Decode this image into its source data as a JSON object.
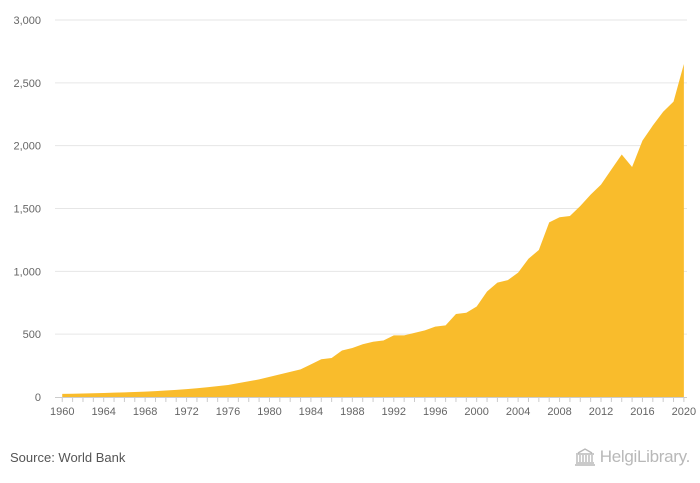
{
  "chart_data": {
    "type": "area",
    "title": "",
    "xlabel": "",
    "ylabel": "",
    "ylim": [
      0,
      3000
    ],
    "xlim": [
      1959.3,
      2020.3
    ],
    "y_ticks": [
      0,
      500,
      1000,
      1500,
      2000,
      2500,
      3000
    ],
    "y_tick_labels": [
      "0",
      "500",
      "1,000",
      "1,500",
      "2,000",
      "2,500",
      "3,000"
    ],
    "x_ticks": [
      1960,
      1964,
      1968,
      1972,
      1976,
      1980,
      1984,
      1988,
      1992,
      1996,
      2000,
      2004,
      2008,
      2012,
      2016,
      2020
    ],
    "x_tick_labels": [
      "1960",
      "1964",
      "1968",
      "1972",
      "1976",
      "1980",
      "1984",
      "1988",
      "1992",
      "1996",
      "2000",
      "2004",
      "2008",
      "2012",
      "2016",
      "2020"
    ],
    "grid": true,
    "x": [
      1960,
      1961,
      1962,
      1963,
      1964,
      1965,
      1966,
      1967,
      1968,
      1969,
      1970,
      1971,
      1972,
      1973,
      1974,
      1975,
      1976,
      1977,
      1978,
      1979,
      1980,
      1981,
      1982,
      1983,
      1984,
      1985,
      1986,
      1987,
      1988,
      1989,
      1990,
      1991,
      1992,
      1993,
      1994,
      1995,
      1996,
      1997,
      1998,
      1999,
      2000,
      2001,
      2002,
      2003,
      2004,
      2005,
      2006,
      2007,
      2008,
      2009,
      2010,
      2011,
      2012,
      2013,
      2014,
      2015,
      2016,
      2017,
      2018,
      2019,
      2020
    ],
    "series": [
      {
        "values": [
          25,
          26,
          28,
          30,
          32,
          35,
          37,
          40,
          43,
          47,
          52,
          57,
          63,
          70,
          78,
          87,
          95,
          110,
          125,
          140,
          160,
          180,
          200,
          220,
          260,
          300,
          310,
          370,
          390,
          420,
          440,
          450,
          490,
          490,
          510,
          530,
          560,
          570,
          660,
          670,
          720,
          840,
          910,
          930,
          990,
          1100,
          1170,
          1390,
          1430,
          1440,
          1520,
          1610,
          1690,
          1810,
          1930,
          1830,
          2040,
          2160,
          2270,
          2350,
          2650
        ]
      }
    ],
    "colors": {
      "area": "#f9bc2c",
      "grid": "#e6e6e6",
      "axis": "#cccccc",
      "tick_text": "#666666"
    }
  },
  "footer": {
    "source": "Source: World Bank",
    "logo_text_1": "Helgi",
    "logo_text_2": "Library."
  }
}
